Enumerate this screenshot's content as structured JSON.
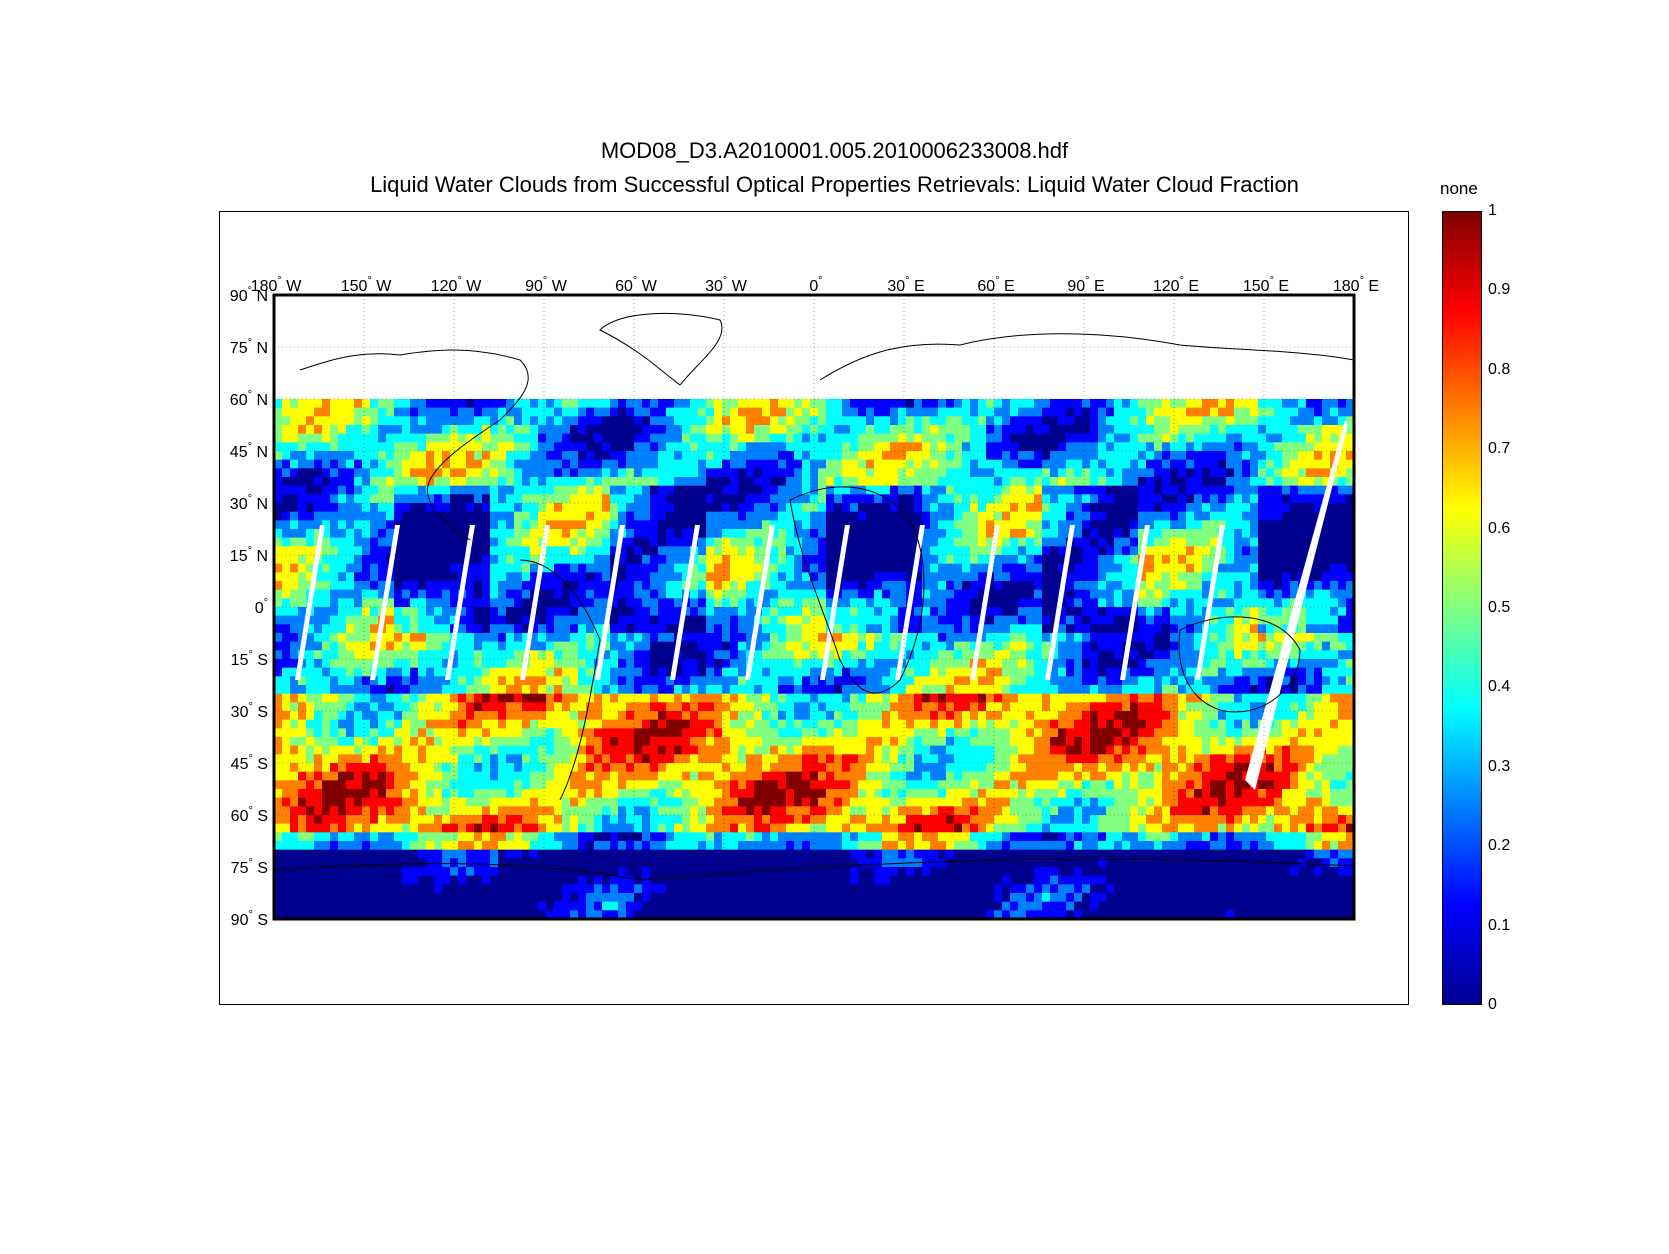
{
  "title_line1": "MOD08_D3.A2010001.005.2010006233008.hdf",
  "title_line2": "Liquid Water Clouds from Successful Optical Properties Retrievals:  Liquid Water Cloud Fraction",
  "colorbar": {
    "units_label": "none",
    "ticks": [
      "1",
      "0.9",
      "0.8",
      "0.7",
      "0.6",
      "0.5",
      "0.4",
      "0.3",
      "0.2",
      "0.1",
      "0"
    ],
    "colors": [
      "#00008f",
      "#0000ff",
      "#0080ff",
      "#00ffff",
      "#80ff80",
      "#ffff00",
      "#ff8000",
      "#ff0000",
      "#800000"
    ]
  },
  "map": {
    "lon_labels": [
      {
        "deg": "180",
        "hem": "W"
      },
      {
        "deg": "150",
        "hem": "W"
      },
      {
        "deg": "120",
        "hem": "W"
      },
      {
        "deg": "90",
        "hem": "W"
      },
      {
        "deg": "60",
        "hem": "W"
      },
      {
        "deg": "30",
        "hem": "W"
      },
      {
        "deg": "0",
        "hem": ""
      },
      {
        "deg": "30",
        "hem": "E"
      },
      {
        "deg": "60",
        "hem": "E"
      },
      {
        "deg": "90",
        "hem": "E"
      },
      {
        "deg": "120",
        "hem": "E"
      },
      {
        "deg": "150",
        "hem": "E"
      },
      {
        "deg": "180",
        "hem": "E"
      }
    ],
    "lat_labels": [
      {
        "deg": "90",
        "hem": "N"
      },
      {
        "deg": "75",
        "hem": "N"
      },
      {
        "deg": "60",
        "hem": "N"
      },
      {
        "deg": "45",
        "hem": "N"
      },
      {
        "deg": "30",
        "hem": "N"
      },
      {
        "deg": "15",
        "hem": "N"
      },
      {
        "deg": "0",
        "hem": ""
      },
      {
        "deg": "15",
        "hem": "S"
      },
      {
        "deg": "30",
        "hem": "S"
      },
      {
        "deg": "45",
        "hem": "S"
      },
      {
        "deg": "60",
        "hem": "S"
      },
      {
        "deg": "75",
        "hem": "S"
      },
      {
        "deg": "90",
        "hem": "S"
      }
    ],
    "lon_range": [
      -180,
      180
    ],
    "lat_range": [
      -90,
      90
    ],
    "data_lat_max": 60,
    "grid": true
  }
}
